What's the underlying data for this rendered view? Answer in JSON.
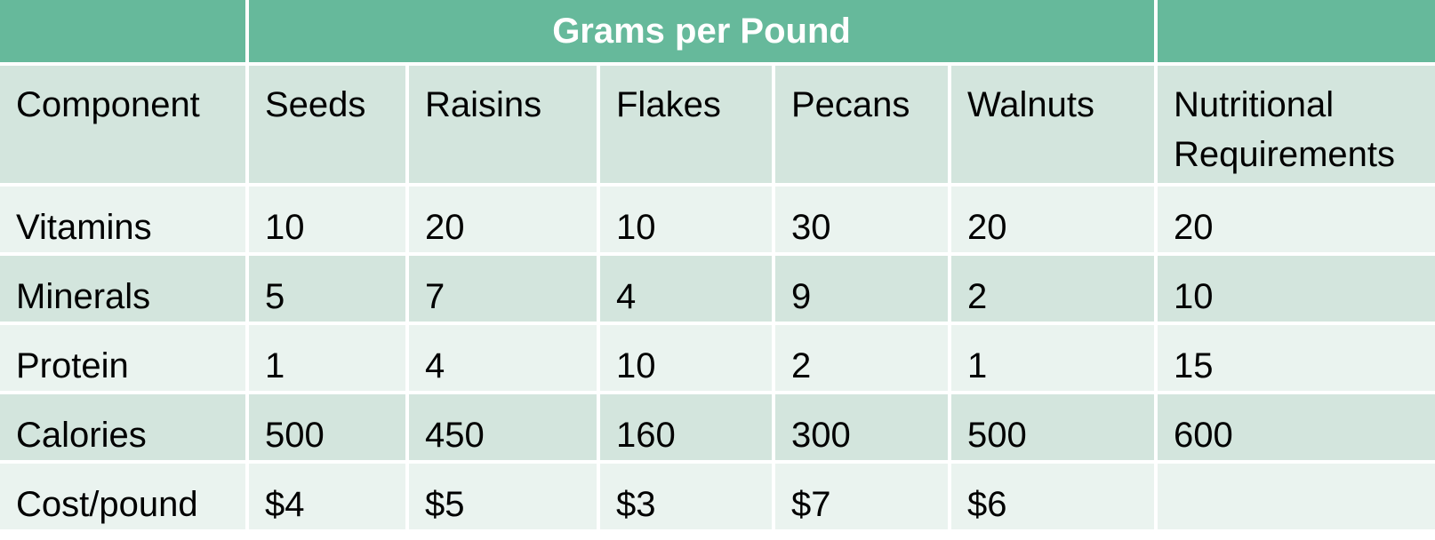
{
  "table": {
    "group_header": "Grams per Pound",
    "columns": [
      "Component",
      "Seeds",
      "Raisins",
      "Flakes",
      "Pecans",
      "Walnuts",
      "Nutritional Requirements"
    ],
    "rows": [
      [
        "Vitamins",
        "10",
        "20",
        "10",
        "30",
        "20",
        "20"
      ],
      [
        "Minerals",
        "5",
        "7",
        "4",
        "9",
        "2",
        "10"
      ],
      [
        "Protein",
        "1",
        "4",
        "10",
        "2",
        "1",
        "15"
      ],
      [
        "Calories",
        "500",
        "450",
        "160",
        "300",
        "500",
        "600"
      ],
      [
        "Cost/pound",
        "$4",
        "$5",
        "$3",
        "$7",
        "$6",
        ""
      ]
    ]
  },
  "colors": {
    "header": "#66b99b",
    "band_dark": "#d3e5dd",
    "band_light": "#eaf3ef"
  }
}
